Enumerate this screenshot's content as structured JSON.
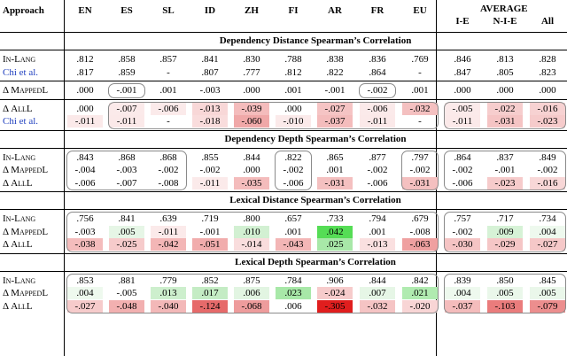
{
  "header": {
    "approach": "Approach",
    "langs": [
      "EN",
      "ES",
      "SL",
      "ID",
      "ZH",
      "FI",
      "AR",
      "FR",
      "EU"
    ],
    "average": "AVERAGE",
    "avg_cols": [
      "I-E",
      "N-I-E",
      "All"
    ]
  },
  "sections": [
    {
      "title": "Dependency Distance Spearman’s Correlation",
      "groups": [
        {
          "rows": [
            {
              "label": "In-Lang",
              "style": "sc",
              "cells": [
                ".812",
                ".858",
                ".857",
                ".841",
                ".830",
                ".788",
                ".838",
                ".836",
                ".769",
                ".846",
                ".813",
                ".828"
              ],
              "colors": [
                "",
                "",
                "",
                "",
                "",
                "",
                "",
                "",
                "",
                "",
                "",
                ""
              ]
            },
            {
              "label": "Chi et al.",
              "style": "blue",
              "cells": [
                ".817",
                ".859",
                "-",
                ".807",
                ".777",
                ".812",
                ".822",
                ".864",
                "-",
                ".847",
                ".805",
                ".823"
              ],
              "colors": [
                "",
                "",
                "",
                "",
                "",
                "",
                "",
                "",
                "",
                "",
                "",
                ""
              ]
            }
          ]
        },
        {
          "rows": [
            {
              "label": "Δ MappedL",
              "style": "sc",
              "cells": [
                ".000",
                "-.001",
                ".001",
                "-.003",
                ".000",
                ".001",
                "-.001",
                "-.002",
                ".001",
                ".000",
                ".000",
                ".000"
              ],
              "colors": [
                "",
                "",
                "",
                "",
                "",
                "",
                "",
                "",
                "",
                "",
                "",
                ""
              ]
            }
          ],
          "pills": [
            [
              1,
              1
            ],
            [
              7,
              7
            ]
          ]
        },
        {
          "rows": [
            {
              "label": "Δ AllL",
              "style": "sc",
              "cells": [
                ".000",
                "-.007",
                "-.006",
                "-.013",
                "-.039",
                ".000",
                "-.027",
                "-.006",
                "-.032",
                "-.005",
                "-.022",
                "-.016"
              ],
              "colors": [
                "",
                "#fbeaea",
                "#fbeaea",
                "#f8d7d7",
                "#f4bcbc",
                "",
                "#f5c4c4",
                "#fbeaea",
                "#f4c0c0",
                "#fbeaea",
                "#f6cdcd",
                "#f7d2d2"
              ]
            },
            {
              "label": "Chi et al.",
              "style": "blue",
              "cells": [
                "-.011",
                "-.011",
                "-",
                "-.018",
                "-.060",
                "-.010",
                "-.037",
                "-.011",
                "-",
                "-.011",
                "-.031",
                "-.023"
              ],
              "colors": [
                "#fbe9e9",
                "#fbe9e9",
                "",
                "#f9dcdc",
                "#f0a8a8",
                "#fbeaea",
                "#f4bcbc",
                "#fbe9e9",
                "",
                "#fbe9e9",
                "#f5c4c4",
                "#f6cbcb"
              ]
            }
          ],
          "pills": [
            [
              1,
              8
            ],
            [
              9,
              11
            ]
          ]
        }
      ]
    },
    {
      "title": "Dependency Depth Spearman’s Correlation",
      "groups": [
        {
          "rows": [
            {
              "label": "In-Lang",
              "style": "sc",
              "cells": [
                ".843",
                ".868",
                ".868",
                ".855",
                ".844",
                ".822",
                ".865",
                ".877",
                ".797",
                ".864",
                ".837",
                ".849"
              ],
              "colors": [
                "",
                "",
                "",
                "",
                "",
                "",
                "",
                "",
                "",
                "",
                "",
                ""
              ]
            },
            {
              "label": "Δ MappedL",
              "style": "sc",
              "cells": [
                "-.004",
                "-.003",
                "-.002",
                "-.002",
                ".000",
                "-.002",
                ".001",
                "-.002",
                "-.002",
                "-.002",
                "-.001",
                "-.002"
              ],
              "colors": [
                "",
                "",
                "",
                "",
                "",
                "",
                "",
                "",
                "",
                "",
                "",
                ""
              ]
            },
            {
              "label": "Δ AllL",
              "style": "sc",
              "cells": [
                "-.006",
                "-.007",
                "-.008",
                "-.011",
                "-.035",
                "-.006",
                "-.031",
                "-.006",
                "-.031",
                "-.006",
                "-.023",
                "-.016"
              ],
              "colors": [
                "",
                "",
                "",
                "#fbeaea",
                "#f4bcbc",
                "",
                "#f4c0c0",
                "",
                "#f4c0c0",
                "",
                "#f6cbcb",
                "#f8d7d7"
              ]
            }
          ],
          "pills": [
            [
              0,
              2
            ],
            [
              5,
              5
            ],
            [
              8,
              8
            ],
            [
              9,
              11
            ]
          ]
        }
      ]
    },
    {
      "title": "Lexical Distance Spearman’s Correlation",
      "groups": [
        {
          "rows": [
            {
              "label": "In-Lang",
              "style": "sc",
              "cells": [
                ".756",
                ".841",
                ".639",
                ".719",
                ".800",
                ".657",
                ".733",
                ".794",
                ".679",
                ".757",
                ".717",
                ".734"
              ],
              "colors": [
                "",
                "",
                "",
                "",
                "",
                "",
                "",
                "",
                "",
                "",
                "",
                ""
              ]
            },
            {
              "label": "Δ MappedL",
              "style": "sc",
              "cells": [
                "-.003",
                ".005",
                "-.011",
                "-.001",
                ".010",
                ".001",
                ".042",
                ".001",
                "-.008",
                "-.002",
                ".009",
                ".004"
              ],
              "colors": [
                "",
                "#e6f6e6",
                "#fbeaea",
                "",
                "#d2f0d2",
                "",
                "#55dd55",
                "",
                "",
                "",
                "#d6f2d6",
                "#eef9ee"
              ]
            },
            {
              "label": "Δ AllL",
              "style": "sc",
              "cells": [
                "-.038",
                "-.025",
                "-.042",
                "-.051",
                "-.014",
                "-.043",
                ".025",
                "-.013",
                "-.063",
                "-.030",
                "-.029",
                "-.027"
              ],
              "colors": [
                "#f4bcbc",
                "#f6cbcb",
                "#f3b6b6",
                "#f1acac",
                "#f9dddd",
                "#f3b6b6",
                "#a8e8a8",
                "#fae0e0",
                "#efa0a0",
                "#f5c4c4",
                "#f5c6c6",
                "#f5c8c8"
              ]
            }
          ],
          "pills": [
            [
              0,
              8
            ],
            [
              9,
              11
            ]
          ]
        }
      ]
    },
    {
      "title": "Lexical Depth Spearman’s Correlation",
      "groups": [
        {
          "rows": [
            {
              "label": "In-Lang",
              "style": "sc",
              "cells": [
                ".853",
                ".881",
                ".779",
                ".852",
                ".875",
                ".784",
                ".906",
                ".844",
                ".842",
                ".839",
                ".850",
                ".845"
              ],
              "colors": [
                "",
                "",
                "",
                "",
                "",
                "",
                "",
                "",
                "",
                "",
                "",
                ""
              ]
            },
            {
              "label": "Δ MappedL",
              "style": "sc",
              "cells": [
                ".004",
                "-.005",
                ".013",
                ".017",
                ".006",
                ".023",
                "-.024",
                ".007",
                ".021",
                ".004",
                ".005",
                ".005"
              ],
              "colors": [
                "#eef9ee",
                "",
                "#cdefcd",
                "#c4ecc4",
                "#e2f5e2",
                "#a8e8a8",
                "#f6cbcb",
                "#e6f6e6",
                "#b0ebb0",
                "#eef9ee",
                "#eaf7ea",
                "#eaf7ea"
              ]
            },
            {
              "label": "Δ AllL",
              "style": "sc",
              "cells": [
                "-.027",
                "-.048",
                "-.040",
                "-.124",
                "-.068",
                ".006",
                "-.305",
                "-.032",
                "-.020",
                "-.037",
                "-.103",
                "-.079"
              ],
              "colors": [
                "#f6cbcb",
                "#f2b0b0",
                "#f3b8b8",
                "#e66a6a",
                "#ee9c9c",
                "",
                "#e01e1e",
                "#f5c4c4",
                "#f8d5d5",
                "#f4bcbc",
                "#ea7c7c",
                "#ec8e8e"
              ]
            }
          ],
          "pills": [
            [
              0,
              8
            ],
            [
              9,
              11
            ]
          ]
        }
      ]
    }
  ]
}
